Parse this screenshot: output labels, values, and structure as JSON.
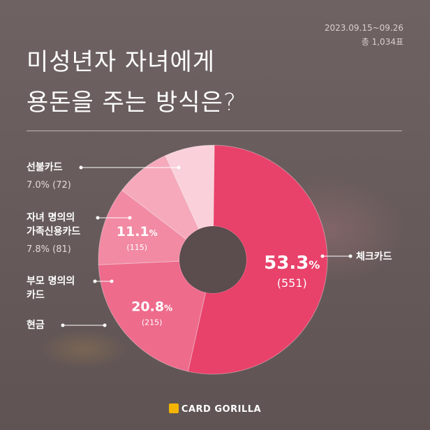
{
  "header": {
    "period": "2023.09.15~09.26",
    "total": "총 1,034표",
    "title_line1": "미성년자 자녀에게",
    "title_line2": "용돈을 주는 방식은?"
  },
  "labels": {
    "gift_card": {
      "name": "선불카드",
      "value": "7.0% (72)"
    },
    "family_card": {
      "name_line1": "자녀 명의의",
      "name_line2": "가족신용카드",
      "value": "7.8% (81)"
    },
    "parent_card": {
      "name_line1": "부모 명의의",
      "name_line2": "카드"
    },
    "cash": {
      "name": "현금"
    },
    "check_card": {
      "name": "체크카드"
    }
  },
  "footer": {
    "brand": "CARD GORILLA"
  },
  "chart_data": {
    "type": "pie",
    "donut": true,
    "categories": [
      "체크카드",
      "현금",
      "부모 명의의 카드",
      "자녀 명의의 가족신용카드",
      "선불카드"
    ],
    "values": [
      53.3,
      20.8,
      11.1,
      7.8,
      7.0
    ],
    "counts": [
      551,
      215,
      115,
      81,
      72
    ],
    "data_labels": [
      {
        "percent": "53.3",
        "pct_sign": "%",
        "count": "(551)"
      },
      {
        "percent": "20.8",
        "pct_sign": "%",
        "count": "(215)"
      },
      {
        "percent": "11.1",
        "pct_sign": "%",
        "count": "(115)"
      },
      null,
      null
    ],
    "colors": [
      "#e8416a",
      "#ee6b8c",
      "#f28aa3",
      "#f5a9bb",
      "#fad0db"
    ]
  }
}
